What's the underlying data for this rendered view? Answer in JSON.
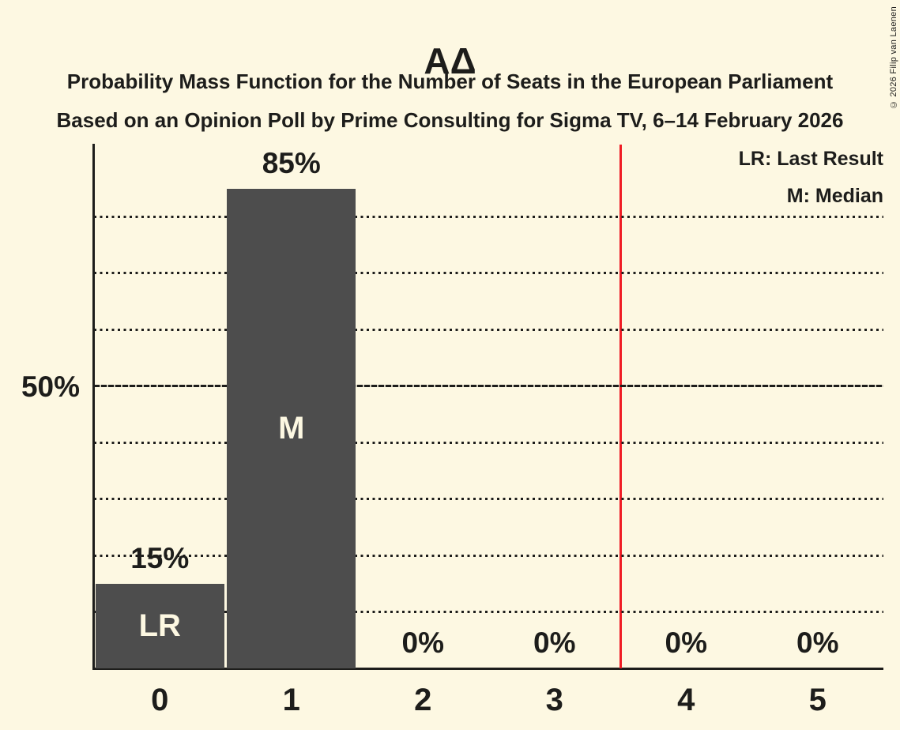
{
  "copyright": "© 2026 Filip van Laenen",
  "chart_data": {
    "type": "bar",
    "title": "ΑΔ",
    "subtitle_lines": [
      "Probability Mass Function for the Number of Seats in the European Parliament",
      "Based on an Opinion Poll by Prime Consulting for Sigma TV, 6–14 February 2026"
    ],
    "categories": [
      "0",
      "1",
      "2",
      "3",
      "4",
      "5"
    ],
    "values": [
      15,
      85,
      0,
      0,
      0,
      0
    ],
    "value_labels": [
      "15%",
      "85%",
      "0%",
      "0%",
      "0%",
      "0%"
    ],
    "bar_annotations": [
      "LR",
      "M",
      "",
      "",
      "",
      ""
    ],
    "legend": [
      "LR: Last Result",
      "M: Median"
    ],
    "legend_position": "top-right",
    "xlabel": "",
    "ylabel": "",
    "ylim": [
      0,
      92.8
    ],
    "ytick": {
      "value": 50,
      "label": "50%"
    },
    "gridlines": {
      "dotted_pct": [
        10,
        20,
        30,
        40,
        60,
        70,
        80
      ],
      "strong_pct": 50
    },
    "majority_line_x": 3.5,
    "grid": true,
    "colors": {
      "background": "#fdf8e2",
      "bar": "#4d4d4d",
      "bar_label": "#fdf8e2",
      "majority_line": "#ef1c24",
      "text": "#1d1d1b"
    }
  }
}
